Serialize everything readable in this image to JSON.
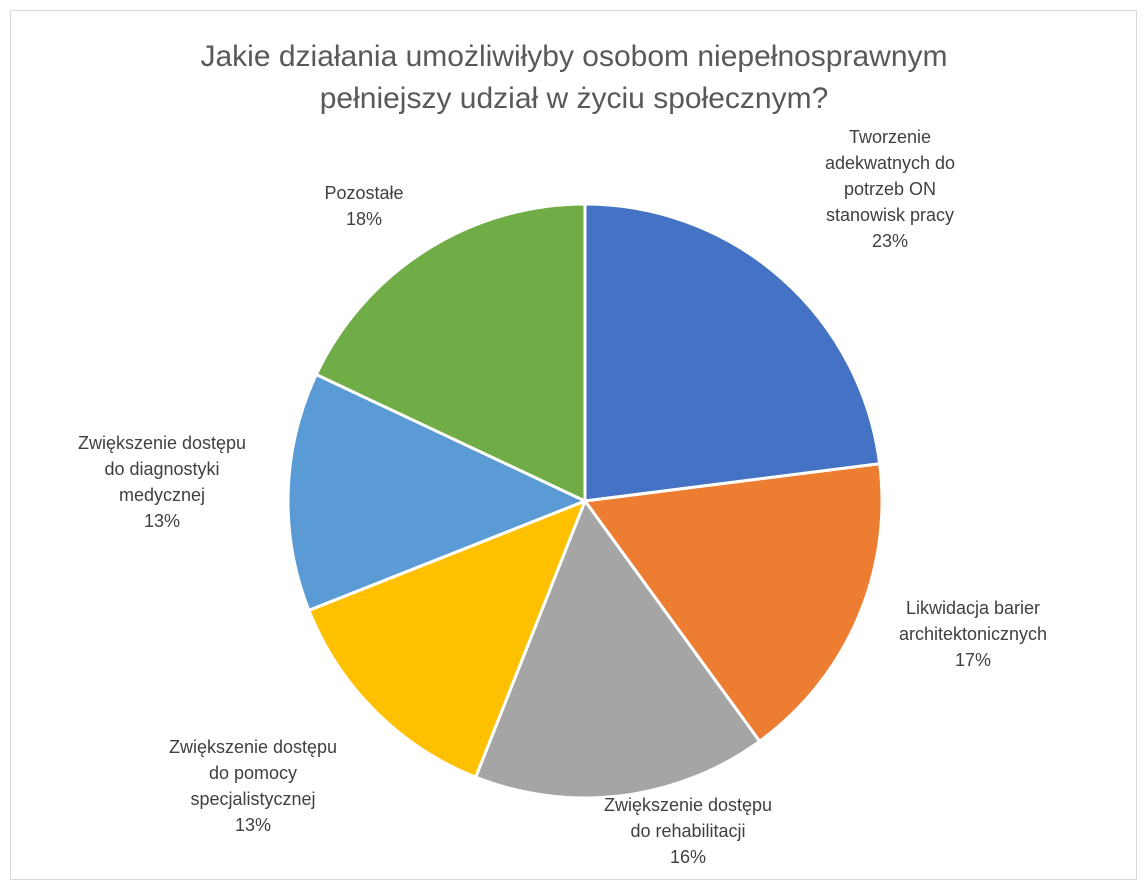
{
  "chart_data": {
    "type": "pie",
    "title": "Jakie działania umożliwiłyby osobom niepełnosprawnym pełniejszy udział w życiu społecznym?",
    "title_lines": [
      "Jakie działania umożliwiłyby osobom niepełnosprawnym",
      "pełniejszy udział w życiu społecznym?"
    ],
    "legend": "none (data labels on chart)",
    "slices": [
      {
        "label": "Tworzenie adekwatnych do potrzeb ON stanowisk pracy",
        "label_lines": [
          "Tworzenie",
          "adekwatnych do",
          "potrzeb ON",
          "stanowisk pracy"
        ],
        "value": 23,
        "value_label": "23%",
        "color": "#4472C4"
      },
      {
        "label": "Likwidacja barier architektonicznych",
        "label_lines": [
          "Likwidacja barier",
          "architektonicznych"
        ],
        "value": 17,
        "value_label": "17%",
        "color": "#ED7D31"
      },
      {
        "label": "Zwiększenie dostępu do rehabilitacji",
        "label_lines": [
          "Zwiększenie dostępu",
          "do rehabilitacji"
        ],
        "value": 16,
        "value_label": "16%",
        "color": "#A5A5A5"
      },
      {
        "label": "Zwiększenie dostępu do pomocy specjalistycznej",
        "label_lines": [
          "Zwiększenie dostępu",
          "do pomocy",
          "specjalistycznej"
        ],
        "value": 13,
        "value_label": "13%",
        "color": "#FFC000"
      },
      {
        "label": "Zwiększenie dostępu do diagnostyki medycznej",
        "label_lines": [
          "Zwiększenie dostępu",
          "do diagnostyki",
          "medycznej"
        ],
        "value": 13,
        "value_label": "13%",
        "color": "#5B9BD5"
      },
      {
        "label": "Pozostałe",
        "label_lines": [
          "Pozostałe"
        ],
        "value": 18,
        "value_label": "18%",
        "color": "#70AD47"
      }
    ]
  }
}
